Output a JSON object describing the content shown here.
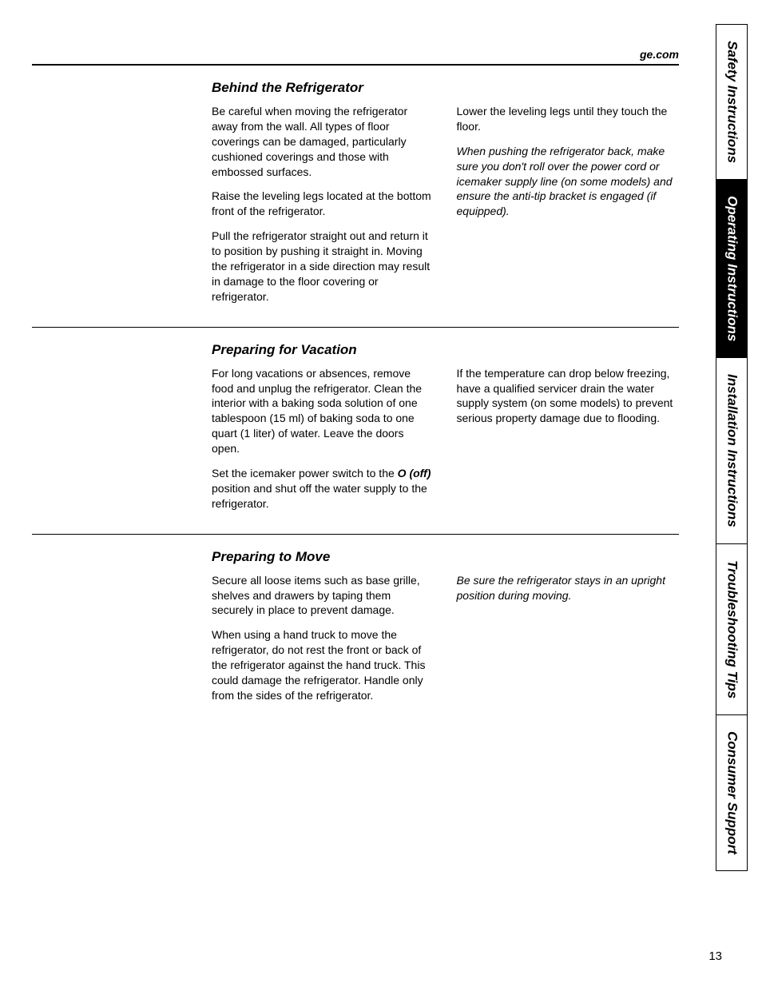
{
  "header": {
    "url": "ge.com"
  },
  "sections": [
    {
      "heading": "Behind the Refrigerator",
      "left": [
        "Be careful when moving the refrigerator away from the wall. All types of floor coverings can be damaged, particularly cushioned coverings and those with embossed surfaces.",
        "Raise the leveling legs located at the bottom front of the refrigerator.",
        "Pull the refrigerator straight out and return it to position by pushing it straight in. Moving the refrigerator in a side direction may result in damage to the floor covering or refrigerator."
      ],
      "right": [
        "Lower the leveling legs until they touch the floor.",
        "When pushing the refrigerator back, make sure you don't roll over the power cord or icemaker supply line (on some models) and ensure the anti-tip bracket is engaged (if equipped)."
      ]
    },
    {
      "heading": "Preparing for Vacation",
      "left": [
        "For long vacations or absences, remove food and unplug the refrigerator. Clean the interior with a baking soda solution of one tablespoon (15 ml) of baking soda to one quart (1 liter) of water. Leave the doors open.",
        "Set the icemaker power switch to the <b>O (off)</b> position and shut off the water supply to the refrigerator."
      ],
      "right": [
        "If the temperature can drop below freezing, have a qualified servicer drain the water supply system (on some models) to prevent serious property damage due to flooding."
      ]
    },
    {
      "heading": "Preparing to Move",
      "left": [
        "Secure all loose items such as base grille, shelves and drawers by taping them securely in place to prevent damage.",
        "When using a hand truck to move the refrigerator, do not rest the front or back of the refrigerator against the hand truck. This could damage the refrigerator. Handle only from the sides of the refrigerator."
      ],
      "right": [
        "Be sure the refrigerator stays in an upright position during moving."
      ]
    }
  ],
  "tabs": [
    {
      "label": "Safety Instructions",
      "active": false
    },
    {
      "label": "Operating Instructions",
      "active": true
    },
    {
      "label": "Installation Instructions",
      "active": false,
      "twoLine": true
    },
    {
      "label": "Troubleshooting Tips",
      "active": false
    },
    {
      "label": "Consumer Support",
      "active": false
    }
  ],
  "pageNumber": "13",
  "italicParas": [
    "When pushing the refrigerator back, make sure you don't roll over the power cord or icemaker supply line (on some models) and ensure the anti-tip bracket is engaged (if equipped).",
    "Be sure the refrigerator stays in an upright position during moving."
  ]
}
